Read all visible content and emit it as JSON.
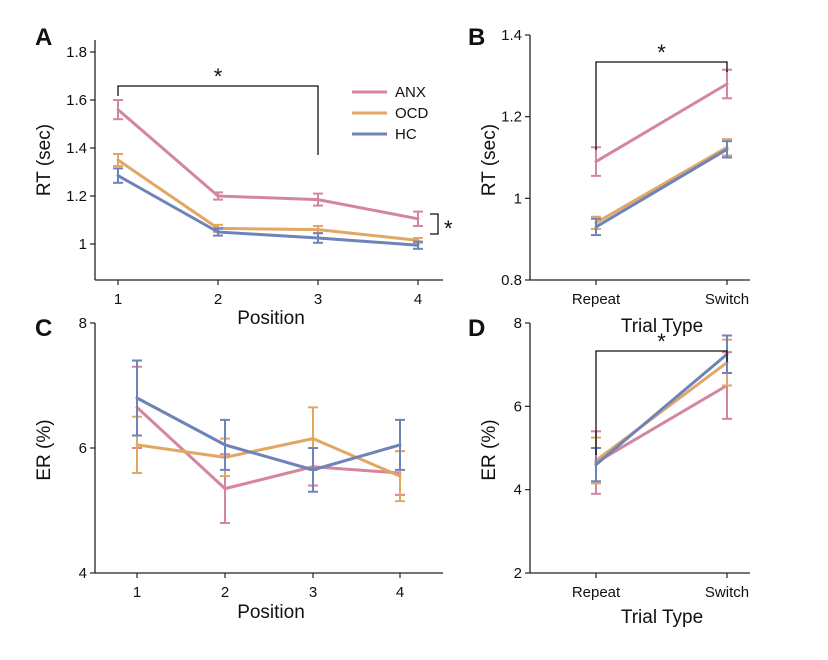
{
  "colors": {
    "ANX": "#d4869f",
    "OCD": "#e2a665",
    "HC": "#6e83b8"
  },
  "legend": [
    {
      "key": "ANX",
      "label": "ANX",
      "color_key": "ANX"
    },
    {
      "key": "OCD",
      "label": "OCD",
      "color_key": "OCD"
    },
    {
      "key": "HC",
      "label": "HC",
      "color_key": "HC"
    }
  ],
  "chart_data": [
    {
      "panel": "A",
      "type": "line",
      "xlabel": "Position",
      "ylabel": "RT (sec)",
      "x": [
        1,
        2,
        3,
        4
      ],
      "xtick_labels": [
        "1",
        "2",
        "3",
        "4"
      ],
      "ylim": [
        0.85,
        1.85
      ],
      "yticks": [
        1,
        1.2,
        1.4,
        1.6,
        1.8
      ],
      "ytick_labels": [
        "1",
        "1.2",
        "1.4",
        "1.6",
        "1.8"
      ],
      "series": [
        {
          "name": "ANX",
          "values": [
            1.56,
            1.2,
            1.185,
            1.105
          ],
          "err": [
            0.04,
            0.015,
            0.025,
            0.03
          ]
        },
        {
          "name": "OCD",
          "values": [
            1.35,
            1.065,
            1.06,
            1.015
          ],
          "err": [
            0.025,
            0.015,
            0.015,
            0.01
          ]
        },
        {
          "name": "HC",
          "values": [
            1.285,
            1.05,
            1.025,
            0.995
          ],
          "err": [
            0.03,
            0.015,
            0.02,
            0.015
          ]
        }
      ],
      "annotations": [
        {
          "kind": "bracket",
          "from_x": 1,
          "to_x": 3,
          "label": "*"
        },
        {
          "kind": "side-bracket",
          "at_x": 4,
          "label": "*"
        }
      ]
    },
    {
      "panel": "B",
      "type": "line",
      "xlabel": "Trial Type",
      "ylabel": "RT (sec)",
      "x": [
        1,
        2
      ],
      "xtick_labels": [
        "Repeat",
        "Switch"
      ],
      "ylim": [
        0.8,
        1.4
      ],
      "yticks": [
        0.8,
        1,
        1.2,
        1.4
      ],
      "ytick_labels": [
        "0.8",
        "1",
        "1.2",
        "1.4"
      ],
      "series": [
        {
          "name": "ANX",
          "values": [
            1.09,
            1.28
          ],
          "err": [
            0.035,
            0.035
          ]
        },
        {
          "name": "OCD",
          "values": [
            0.94,
            1.125
          ],
          "err": [
            0.015,
            0.02
          ]
        },
        {
          "name": "HC",
          "values": [
            0.93,
            1.12
          ],
          "err": [
            0.02,
            0.02
          ]
        }
      ],
      "annotations": [
        {
          "kind": "bracket",
          "from_x": 1,
          "to_x": 2,
          "label": "*"
        }
      ]
    },
    {
      "panel": "C",
      "type": "line",
      "xlabel": "Position",
      "ylabel": "ER (%)",
      "x": [
        1,
        2,
        3,
        4
      ],
      "xtick_labels": [
        "1",
        "2",
        "3",
        "4"
      ],
      "ylim": [
        4,
        8
      ],
      "yticks": [
        4,
        6,
        8
      ],
      "ytick_labels": [
        "4",
        "6",
        "8"
      ],
      "series": [
        {
          "name": "ANX",
          "values": [
            6.65,
            5.35,
            5.7,
            5.6
          ],
          "err": [
            0.65,
            0.55,
            0.3,
            0.35
          ]
        },
        {
          "name": "OCD",
          "values": [
            6.05,
            5.85,
            6.15,
            5.55
          ],
          "err": [
            0.45,
            0.3,
            0.5,
            0.4
          ]
        },
        {
          "name": "HC",
          "values": [
            6.8,
            6.05,
            5.65,
            6.05
          ],
          "err": [
            0.6,
            0.4,
            0.35,
            0.4
          ]
        }
      ],
      "annotations": []
    },
    {
      "panel": "D",
      "type": "line",
      "xlabel": "Trial Type",
      "ylabel": "ER (%)",
      "x": [
        1,
        2
      ],
      "xtick_labels": [
        "Repeat",
        "Switch"
      ],
      "ylim": [
        2,
        8
      ],
      "yticks": [
        2,
        4,
        6,
        8
      ],
      "ytick_labels": [
        "2",
        "4",
        "6",
        "8"
      ],
      "series": [
        {
          "name": "ANX",
          "values": [
            4.65,
            6.5
          ],
          "err": [
            0.75,
            0.8
          ]
        },
        {
          "name": "OCD",
          "values": [
            4.7,
            7.05
          ],
          "err": [
            0.55,
            0.55
          ]
        },
        {
          "name": "HC",
          "values": [
            4.6,
            7.25
          ],
          "err": [
            0.4,
            0.45
          ]
        }
      ],
      "annotations": [
        {
          "kind": "bracket",
          "from_x": 1,
          "to_x": 2,
          "label": "*"
        }
      ]
    }
  ]
}
